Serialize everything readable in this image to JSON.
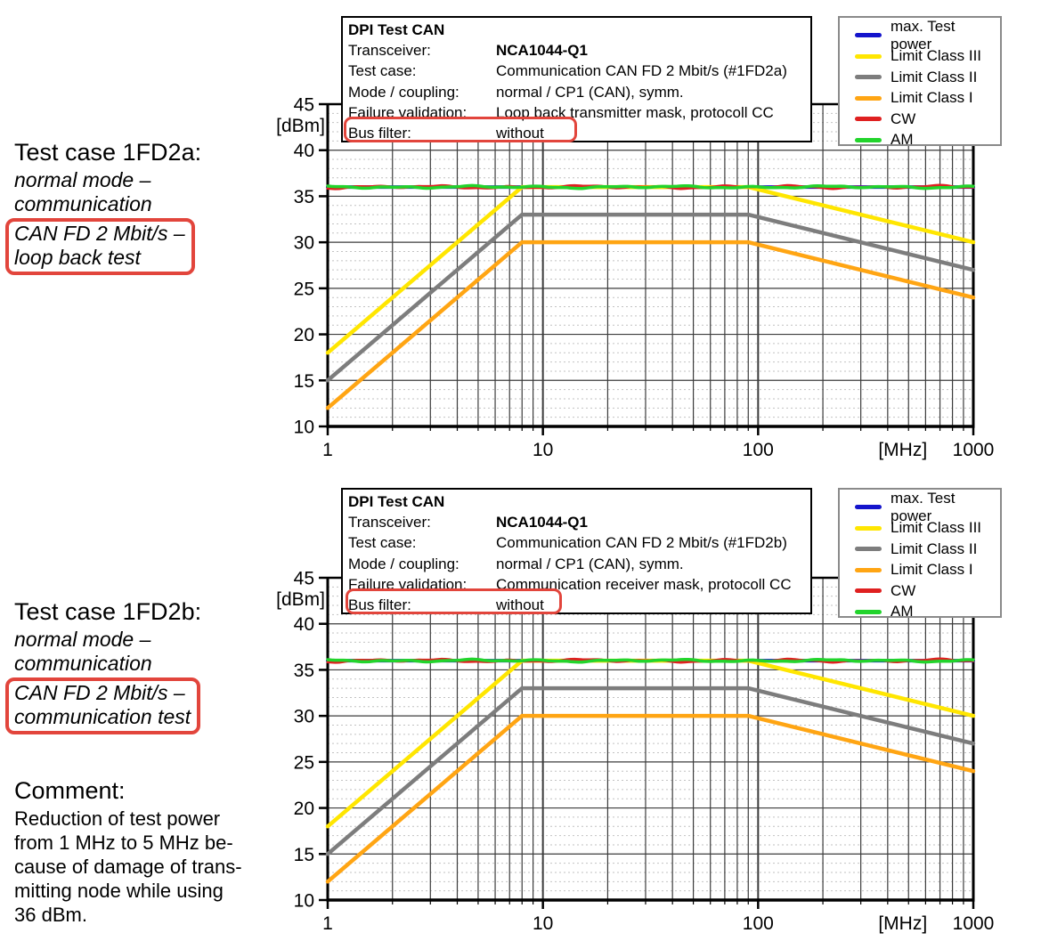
{
  "annotations": {
    "test_case_1": {
      "title": "Test case 1FD2a:",
      "lines": [
        "normal mode –",
        "communication"
      ],
      "boxed_lines": [
        "CAN FD 2 Mbit/s –",
        "loop back test"
      ]
    },
    "test_case_2": {
      "title": "Test case 1FD2b:",
      "lines": [
        "normal mode –",
        "communication"
      ],
      "boxed_lines": [
        "CAN FD 2 Mbit/s –",
        "communication test"
      ]
    },
    "comment": {
      "title": "Comment:",
      "lines": [
        "Reduction of test power",
        "from 1 MHz to 5 MHz be-",
        "cause of damage of trans-",
        "mitting node while using",
        "36 dBm."
      ]
    }
  },
  "highlight_color": "#e2453c",
  "chart_data": [
    {
      "type": "line",
      "header": {
        "title": "DPI Test CAN",
        "rows": [
          {
            "label": "Transceiver:",
            "value": "NCA1044-Q1"
          },
          {
            "label": "Test case:",
            "value": "Communication CAN FD 2 Mbit/s (#1FD2a)"
          },
          {
            "label": "Mode / coupling:",
            "value": "normal / CP1 (CAN), symm."
          },
          {
            "label": "Failure validation:",
            "value": "Loop back transmitter mask, protocoll CC"
          },
          {
            "label": "Bus filter:",
            "value": "without"
          }
        ]
      },
      "x_scale": "log",
      "xlim": [
        1,
        1000
      ],
      "ylim": [
        10,
        45
      ],
      "xticks": [
        1,
        10,
        100,
        1000
      ],
      "yticks": [
        45,
        40,
        35,
        30,
        25,
        20,
        15,
        10
      ],
      "xlabel": "[MHz]",
      "ylabel": "[dBm]",
      "grid": "log major + 1dB dotted minor",
      "legend_position": "top-right",
      "legend": [
        {
          "name": "max. Test power",
          "color": "#1414cc"
        },
        {
          "name": "Limit Class III",
          "color": "#ffe600"
        },
        {
          "name": "Limit Class II",
          "color": "#7d7d7d"
        },
        {
          "name": "Limit Class I",
          "color": "#ffa513"
        },
        {
          "name": "CW",
          "color": "#df2020"
        },
        {
          "name": "AM",
          "color": "#22d42c"
        }
      ],
      "series": [
        {
          "name": "max. Test power",
          "color": "#1414cc",
          "width": 4,
          "noise": 0,
          "points": [
            [
              1,
              36
            ],
            [
              1000,
              36
            ]
          ]
        },
        {
          "name": "Limit Class III",
          "color": "#ffe600",
          "width": 4.5,
          "noise": 0,
          "points": [
            [
              1,
              18
            ],
            [
              8,
              36
            ],
            [
              90,
              36
            ],
            [
              1000,
              30
            ]
          ]
        },
        {
          "name": "Limit Class II",
          "color": "#7d7d7d",
          "width": 4.5,
          "noise": 0,
          "points": [
            [
              1,
              15
            ],
            [
              8,
              33
            ],
            [
              90,
              33
            ],
            [
              1000,
              27
            ]
          ]
        },
        {
          "name": "Limit Class I",
          "color": "#ffa513",
          "width": 4.5,
          "noise": 0,
          "points": [
            [
              1,
              12
            ],
            [
              8,
              30
            ],
            [
              90,
              30
            ],
            [
              1000,
              24
            ]
          ]
        },
        {
          "name": "CW",
          "color": "#df2020",
          "width": 3,
          "noise": 0.16,
          "points": [
            [
              1,
              36
            ],
            [
              1000,
              36
            ]
          ]
        },
        {
          "name": "AM",
          "color": "#22d42c",
          "width": 3.5,
          "noise": 0.13,
          "points": [
            [
              1,
              36
            ],
            [
              1000,
              36
            ]
          ]
        }
      ]
    },
    {
      "type": "line",
      "header": {
        "title": "DPI Test CAN",
        "rows": [
          {
            "label": "Transceiver:",
            "value": "NCA1044-Q1"
          },
          {
            "label": "Test case:",
            "value": "Communication CAN FD 2 Mbit/s (#1FD2b)"
          },
          {
            "label": "Mode / coupling:",
            "value": "normal / CP1 (CAN), symm."
          },
          {
            "label": "Failure validation:",
            "value": "Communication receiver mask, protocoll CC"
          },
          {
            "label": "Bus filter:",
            "value": "without"
          }
        ]
      },
      "x_scale": "log",
      "xlim": [
        1,
        1000
      ],
      "ylim": [
        10,
        45
      ],
      "xticks": [
        1,
        10,
        100,
        1000
      ],
      "yticks": [
        45,
        40,
        35,
        30,
        25,
        20,
        15,
        10
      ],
      "xlabel": "[MHz]",
      "ylabel": "[dBm]",
      "grid": "log major + 1dB dotted minor",
      "legend_position": "top-right",
      "legend": [
        {
          "name": "max. Test power",
          "color": "#1414cc"
        },
        {
          "name": "Limit Class III",
          "color": "#ffe600"
        },
        {
          "name": "Limit Class II",
          "color": "#7d7d7d"
        },
        {
          "name": "Limit Class I",
          "color": "#ffa513"
        },
        {
          "name": "CW",
          "color": "#df2020"
        },
        {
          "name": "AM",
          "color": "#22d42c"
        }
      ],
      "series": [
        {
          "name": "max. Test power",
          "color": "#1414cc",
          "width": 4,
          "noise": 0,
          "points": [
            [
              1,
              36
            ],
            [
              1000,
              36
            ]
          ]
        },
        {
          "name": "Limit Class III",
          "color": "#ffe600",
          "width": 4.5,
          "noise": 0,
          "points": [
            [
              1,
              18
            ],
            [
              8,
              36
            ],
            [
              90,
              36
            ],
            [
              1000,
              30
            ]
          ]
        },
        {
          "name": "Limit Class II",
          "color": "#7d7d7d",
          "width": 4.5,
          "noise": 0,
          "points": [
            [
              1,
              15
            ],
            [
              8,
              33
            ],
            [
              90,
              33
            ],
            [
              1000,
              27
            ]
          ]
        },
        {
          "name": "Limit Class I",
          "color": "#ffa513",
          "width": 4.5,
          "noise": 0,
          "points": [
            [
              1,
              12
            ],
            [
              8,
              30
            ],
            [
              90,
              30
            ],
            [
              1000,
              24
            ]
          ]
        },
        {
          "name": "CW",
          "color": "#df2020",
          "width": 3,
          "noise": 0.16,
          "points": [
            [
              1,
              36
            ],
            [
              1000,
              36
            ]
          ]
        },
        {
          "name": "AM",
          "color": "#22d42c",
          "width": 3.5,
          "noise": 0.13,
          "points": [
            [
              1,
              36
            ],
            [
              1000,
              36
            ]
          ]
        }
      ]
    }
  ]
}
